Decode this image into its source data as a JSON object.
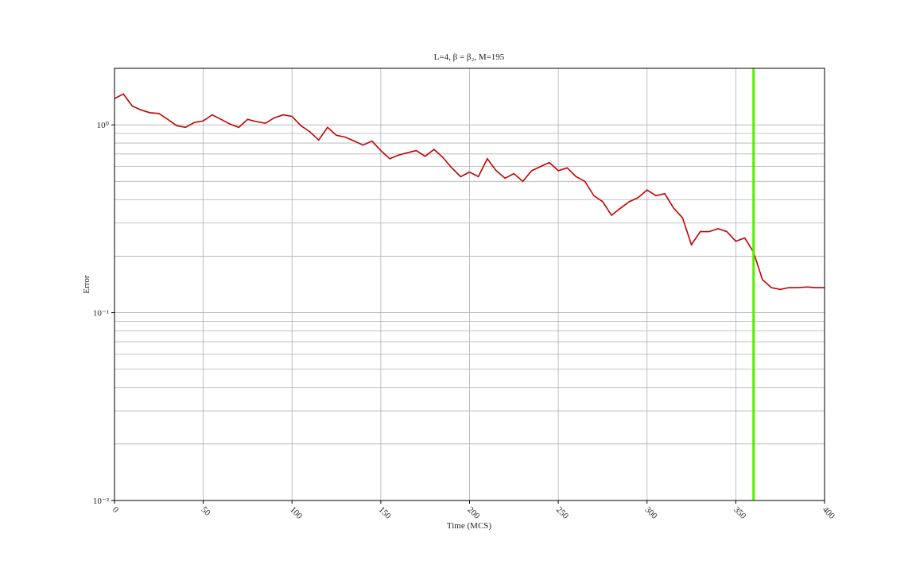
{
  "chart_data": {
    "type": "line",
    "title": "L=4, β = β₂, M=195",
    "x_label": "Time (MCS)",
    "y_label": "Error",
    "y_log": true,
    "grid": true,
    "xlim": [
      0,
      400
    ],
    "xticks": [
      0,
      50,
      100,
      150,
      200,
      250,
      300,
      350,
      400
    ],
    "ylim": [
      0.01,
      2
    ],
    "yticks": [
      {
        "value": 0.01,
        "label": "10⁻²"
      },
      {
        "value": 0.1,
        "label": "10⁻¹"
      },
      {
        "value": 1,
        "label": "10⁰"
      }
    ],
    "yminorticks": [
      0.02,
      0.03,
      0.04,
      0.05,
      0.06,
      0.07,
      0.08,
      0.09,
      0.2,
      0.3,
      0.4,
      0.5,
      0.6,
      0.7,
      0.8,
      0.9
    ],
    "x": [
      0,
      5,
      10,
      15,
      20,
      25,
      30,
      35,
      40,
      45,
      50,
      55,
      60,
      65,
      70,
      75,
      80,
      85,
      90,
      95,
      100,
      105,
      110,
      115,
      120,
      125,
      130,
      135,
      140,
      145,
      150,
      155,
      160,
      165,
      170,
      175,
      180,
      185,
      190,
      195,
      200,
      205,
      210,
      215,
      220,
      225,
      230,
      235,
      240,
      245,
      250,
      255,
      260,
      265,
      270,
      275,
      280,
      285,
      290,
      295,
      300,
      305,
      310,
      315,
      320,
      325,
      330,
      335,
      340,
      345,
      350,
      355,
      360,
      365,
      370,
      375,
      380,
      385,
      390,
      395,
      400
    ],
    "series": [
      {
        "color": "#c00000",
        "values": [
          1.38,
          1.46,
          1.26,
          1.2,
          1.16,
          1.15,
          1.07,
          0.99,
          0.97,
          1.03,
          1.05,
          1.13,
          1.07,
          1.01,
          0.97,
          1.07,
          1.04,
          1.02,
          1.09,
          1.13,
          1.11,
          0.99,
          0.92,
          0.83,
          0.97,
          0.88,
          0.86,
          0.82,
          0.78,
          0.82,
          0.73,
          0.66,
          0.69,
          0.71,
          0.73,
          0.68,
          0.74,
          0.67,
          0.59,
          0.53,
          0.56,
          0.53,
          0.66,
          0.57,
          0.52,
          0.55,
          0.5,
          0.57,
          0.6,
          0.63,
          0.57,
          0.59,
          0.53,
          0.5,
          0.42,
          0.39,
          0.33,
          0.36,
          0.39,
          0.41,
          0.45,
          0.42,
          0.43,
          0.36,
          0.32,
          0.23,
          0.27,
          0.27,
          0.28,
          0.27,
          0.24,
          0.25,
          0.21,
          0.15,
          0.136,
          0.133,
          0.136,
          0.136,
          0.137,
          0.136,
          0.136
        ]
      }
    ],
    "vline": {
      "x": 360,
      "color": "#55ee00"
    }
  }
}
